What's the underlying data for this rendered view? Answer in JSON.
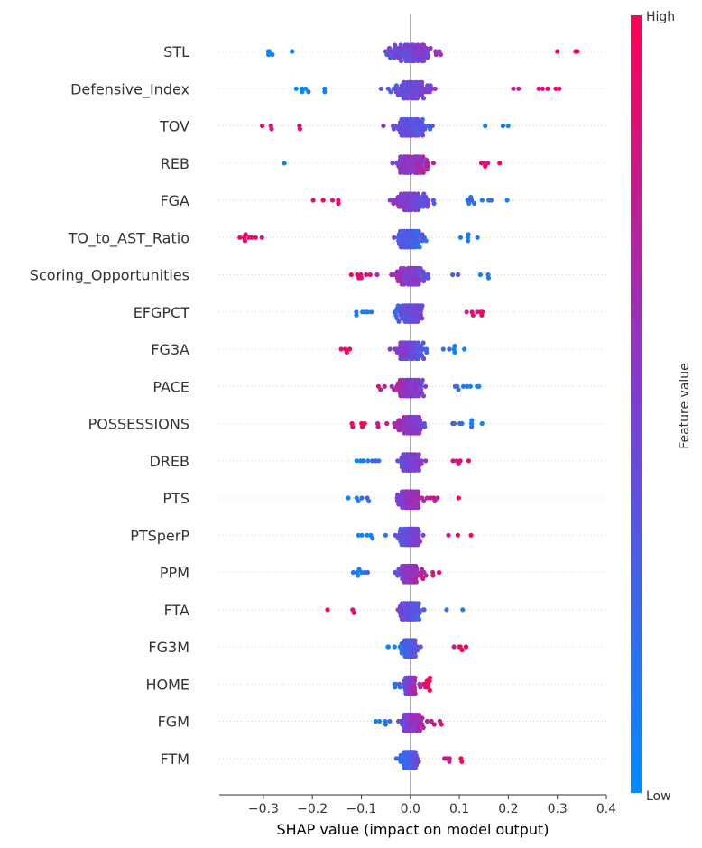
{
  "chart_data": {
    "type": "scatter",
    "subtype": "shap-beeswarm",
    "title": "",
    "xlabel": "SHAP value (impact on model output)",
    "ylabel": "",
    "xlim": [
      -0.39,
      0.4
    ],
    "xticks": [
      -0.3,
      -0.2,
      -0.1,
      0.0,
      0.1,
      0.2,
      0.3,
      0.4
    ],
    "xtick_labels": [
      "−0.3",
      "−0.2",
      "−0.1",
      "0.0",
      "0.1",
      "0.2",
      "0.3",
      "0.4"
    ],
    "colorbar": {
      "title": "Feature value",
      "high_label": "High",
      "low_label": "Low",
      "low_color": "#008bfb",
      "high_color": "#ff0052"
    },
    "features": [
      {
        "name": "STL",
        "lo": -0.32,
        "hi": 0.37,
        "trend": 1,
        "spread": 0.1
      },
      {
        "name": "Defensive_Index",
        "lo": -0.24,
        "hi": 0.31,
        "trend": 1,
        "spread": 0.09
      },
      {
        "name": "TOV",
        "lo": -0.32,
        "hi": 0.2,
        "trend": -1,
        "spread": 0.08
      },
      {
        "name": "REB",
        "lo": -0.3,
        "hi": 0.22,
        "trend": 1,
        "spread": 0.08
      },
      {
        "name": "FGA",
        "lo": -0.21,
        "hi": 0.21,
        "trend": -1,
        "spread": 0.08
      },
      {
        "name": "TO_to_AST_Ratio",
        "lo": -0.35,
        "hi": 0.15,
        "trend": -1,
        "spread": 0.06
      },
      {
        "name": "Scoring_Opportunities",
        "lo": -0.14,
        "hi": 0.17,
        "trend": -1,
        "spread": 0.07
      },
      {
        "name": "EFGPCT",
        "lo": -0.12,
        "hi": 0.18,
        "trend": 1,
        "spread": 0.06
      },
      {
        "name": "FG3A",
        "lo": -0.15,
        "hi": 0.12,
        "trend": -1,
        "spread": 0.06
      },
      {
        "name": "PACE",
        "lo": -0.12,
        "hi": 0.16,
        "trend": -1,
        "spread": 0.06
      },
      {
        "name": "POSSESSIONS",
        "lo": -0.12,
        "hi": 0.15,
        "trend": -1,
        "spread": 0.06
      },
      {
        "name": "DREB",
        "lo": -0.12,
        "hi": 0.13,
        "trend": 1,
        "spread": 0.05
      },
      {
        "name": "PTS",
        "lo": -0.14,
        "hi": 0.1,
        "trend": 1,
        "spread": 0.05
      },
      {
        "name": "PTSperP",
        "lo": -0.11,
        "hi": 0.13,
        "trend": 1,
        "spread": 0.05
      },
      {
        "name": "PPM",
        "lo": -0.13,
        "hi": 0.09,
        "trend": 1,
        "spread": 0.05
      },
      {
        "name": "FTA",
        "lo": -0.17,
        "hi": 0.11,
        "trend": -1,
        "spread": 0.05
      },
      {
        "name": "FG3M",
        "lo": -0.05,
        "hi": 0.12,
        "trend": 1,
        "spread": 0.035
      },
      {
        "name": "HOME",
        "lo": -0.045,
        "hi": 0.04,
        "trend": 1,
        "spread": 0.02
      },
      {
        "name": "FGM",
        "lo": -0.08,
        "hi": 0.07,
        "trend": 1,
        "spread": 0.04
      },
      {
        "name": "FTM",
        "lo": -0.05,
        "hi": 0.11,
        "trend": 1,
        "spread": 0.035
      }
    ],
    "grid": false
  }
}
